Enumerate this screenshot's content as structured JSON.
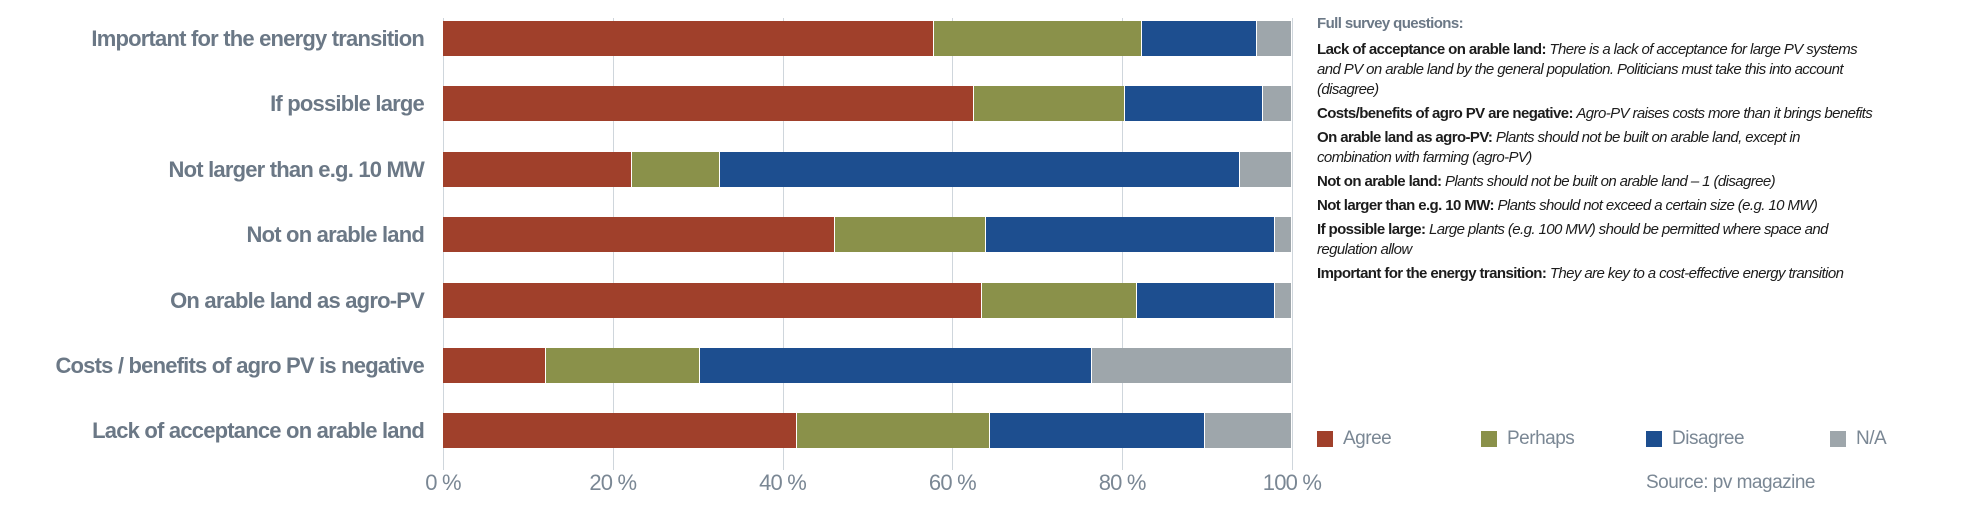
{
  "chart_data": {
    "type": "bar",
    "orientation": "horizontal",
    "stacked": true,
    "categories": [
      "Important for the energy transition",
      "If possible large",
      "Not larger than e.g. 10 MW",
      "Not on arable land",
      "On arable land as agro-PV",
      "Costs / benefits of agro PV is negative",
      "Lack of acceptance on arable land"
    ],
    "series": [
      {
        "name": "Agree",
        "color": "#a0402b",
        "values": [
          57.8,
          62.6,
          22.3,
          46.2,
          63.5,
          12.1,
          41.7
        ]
      },
      {
        "name": "Perhaps",
        "color": "#8a914a",
        "values": [
          24.5,
          17.7,
          10.3,
          17.7,
          18.3,
          18.2,
          22.7
        ]
      },
      {
        "name": "Disagree",
        "color": "#1d4e8f",
        "values": [
          13.6,
          16.3,
          61.3,
          34.1,
          16.2,
          46.1,
          25.3
        ]
      },
      {
        "name": "N/A",
        "color": "#9ea6ab",
        "values": [
          4.1,
          3.4,
          6.1,
          2.0,
          2.0,
          23.6,
          10.3
        ]
      }
    ],
    "xticks": [
      "0 %",
      "20 %",
      "40 %",
      "60 %",
      "80 %",
      "100 %"
    ],
    "xlim": [
      0,
      100
    ],
    "grid": true,
    "legend_position": "bottom-right"
  },
  "notes": {
    "title": "Full survey questions:",
    "items": [
      {
        "term": "Lack of acceptance on arable land:",
        "text": "There is a lack of acceptance for large PV systems and PV on arable land by the general population. Politicians must take this into account (disagree)"
      },
      {
        "term": "Costs/benefits of agro PV are negative:",
        "text": "Agro-PV raises costs more than it brings benefits"
      },
      {
        "term": "On arable land as agro-PV:",
        "text": "Plants should not be built on arable land, except in combination with farming (agro-PV)"
      },
      {
        "term": "Not on arable land:",
        "text": "Plants should not be built on arable land – 1 (disagree)"
      },
      {
        "term": "Not larger than e.g. 10 MW:",
        "text": "Plants should not exceed a certain size (e.g. 10 MW)"
      },
      {
        "term": "If possible large:",
        "text": "Large plants (e.g. 100 MW) should be permitted where space and regulation allow"
      },
      {
        "term": "Important for the energy transition:",
        "text": "They are key to a cost-effective energy transition"
      }
    ]
  },
  "source": "Source: pv magazine"
}
